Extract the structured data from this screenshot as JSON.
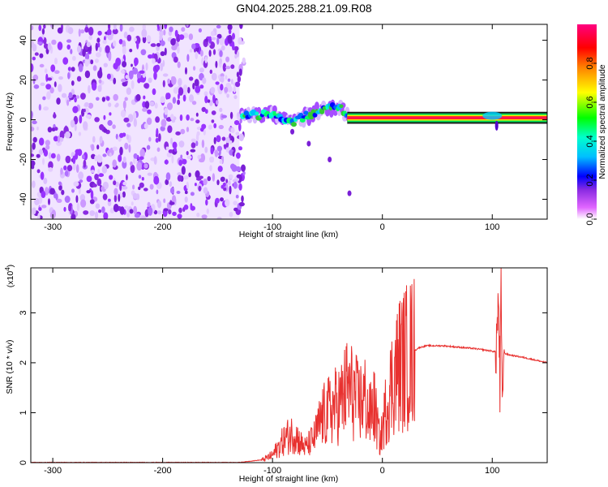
{
  "title": "GN04.2025.288.21.09.R08",
  "chart_data": [
    {
      "type": "heatmap",
      "name": "spectrogram",
      "xlabel": "Height of straight line (km)",
      "ylabel": "Frequency (Hz)",
      "xlim": [
        -320,
        150
      ],
      "ylim": [
        -50,
        48
      ],
      "xticks": [
        -300,
        -200,
        -100,
        0,
        100
      ],
      "yticks": [
        -40,
        -20,
        0,
        20,
        40
      ],
      "noise_region_x": [
        -320,
        -130
      ],
      "signal_track": [
        {
          "x": -128,
          "f": 3
        },
        {
          "x": -115,
          "f": 2
        },
        {
          "x": -100,
          "f": 3
        },
        {
          "x": -90,
          "f": 0
        },
        {
          "x": -80,
          "f": -1
        },
        {
          "x": -70,
          "f": 2
        },
        {
          "x": -60,
          "f": 4
        },
        {
          "x": -50,
          "f": 6
        },
        {
          "x": -40,
          "f": 7
        },
        {
          "x": -32,
          "f": 2
        },
        {
          "x": -25,
          "f": 1
        },
        {
          "x": 0,
          "f": 1
        },
        {
          "x": 80,
          "f": 2
        },
        {
          "x": 100,
          "f": 2
        },
        {
          "x": 150,
          "f": 1
        }
      ],
      "colorbar": {
        "label": "Normalized spectral amplitude",
        "ticks": [
          0.0,
          0.2,
          0.4,
          0.6,
          0.8
        ],
        "colors": [
          "#ffffff",
          "#d9b3ff",
          "#8a2be2",
          "#0000ff",
          "#00bfff",
          "#00ffcc",
          "#00ff00",
          "#ffff00",
          "#ff8000",
          "#ff0000",
          "#ff0080"
        ]
      }
    },
    {
      "type": "line",
      "name": "snr",
      "xlabel": "Height of straight line (km)",
      "ylabel": "SNR (10 * v/v)",
      "scale_label": "(x10",
      "scale_exp": "4",
      "xlim": [
        -320,
        150
      ],
      "ylim": [
        0,
        3.9
      ],
      "xticks": [
        -300,
        -200,
        -100,
        0,
        100
      ],
      "yticks": [
        0,
        1,
        2,
        3
      ],
      "color": "#e8312f",
      "series": [
        {
          "x": -320,
          "y": 0.0
        },
        {
          "x": -130,
          "y": 0.0
        },
        {
          "x": -110,
          "y": 0.05
        },
        {
          "x": -100,
          "y": 0.15
        },
        {
          "x": -95,
          "y": 0.3
        },
        {
          "x": -88,
          "y": 0.5
        },
        {
          "x": -80,
          "y": 0.6
        },
        {
          "x": -75,
          "y": 0.4
        },
        {
          "x": -70,
          "y": 0.3
        },
        {
          "x": -62,
          "y": 0.5
        },
        {
          "x": -55,
          "y": 0.9
        },
        {
          "x": -45,
          "y": 1.1
        },
        {
          "x": -38,
          "y": 1.2
        },
        {
          "x": -32,
          "y": 1.5
        },
        {
          "x": -27,
          "y": 1.4
        },
        {
          "x": -22,
          "y": 1.2
        },
        {
          "x": -16,
          "y": 1.3
        },
        {
          "x": -12,
          "y": 0.9
        },
        {
          "x": -8,
          "y": 1.2
        },
        {
          "x": -2,
          "y": 0.4
        },
        {
          "x": 4,
          "y": 1.2
        },
        {
          "x": 10,
          "y": 1.7
        },
        {
          "x": 16,
          "y": 2.0
        },
        {
          "x": 24,
          "y": 2.15
        },
        {
          "x": 33,
          "y": 2.3
        },
        {
          "x": 40,
          "y": 2.34
        },
        {
          "x": 55,
          "y": 2.34
        },
        {
          "x": 70,
          "y": 2.31
        },
        {
          "x": 85,
          "y": 2.28
        },
        {
          "x": 98,
          "y": 2.24
        },
        {
          "x": 103,
          "y": 2.22
        },
        {
          "x": 106,
          "y": 3.2
        },
        {
          "x": 107,
          "y": 1.2
        },
        {
          "x": 108,
          "y": 3.9
        },
        {
          "x": 109,
          "y": 0.75
        },
        {
          "x": 110,
          "y": 2.2
        },
        {
          "x": 115,
          "y": 2.16
        },
        {
          "x": 130,
          "y": 2.1
        },
        {
          "x": 150,
          "y": 2.0
        }
      ]
    }
  ]
}
